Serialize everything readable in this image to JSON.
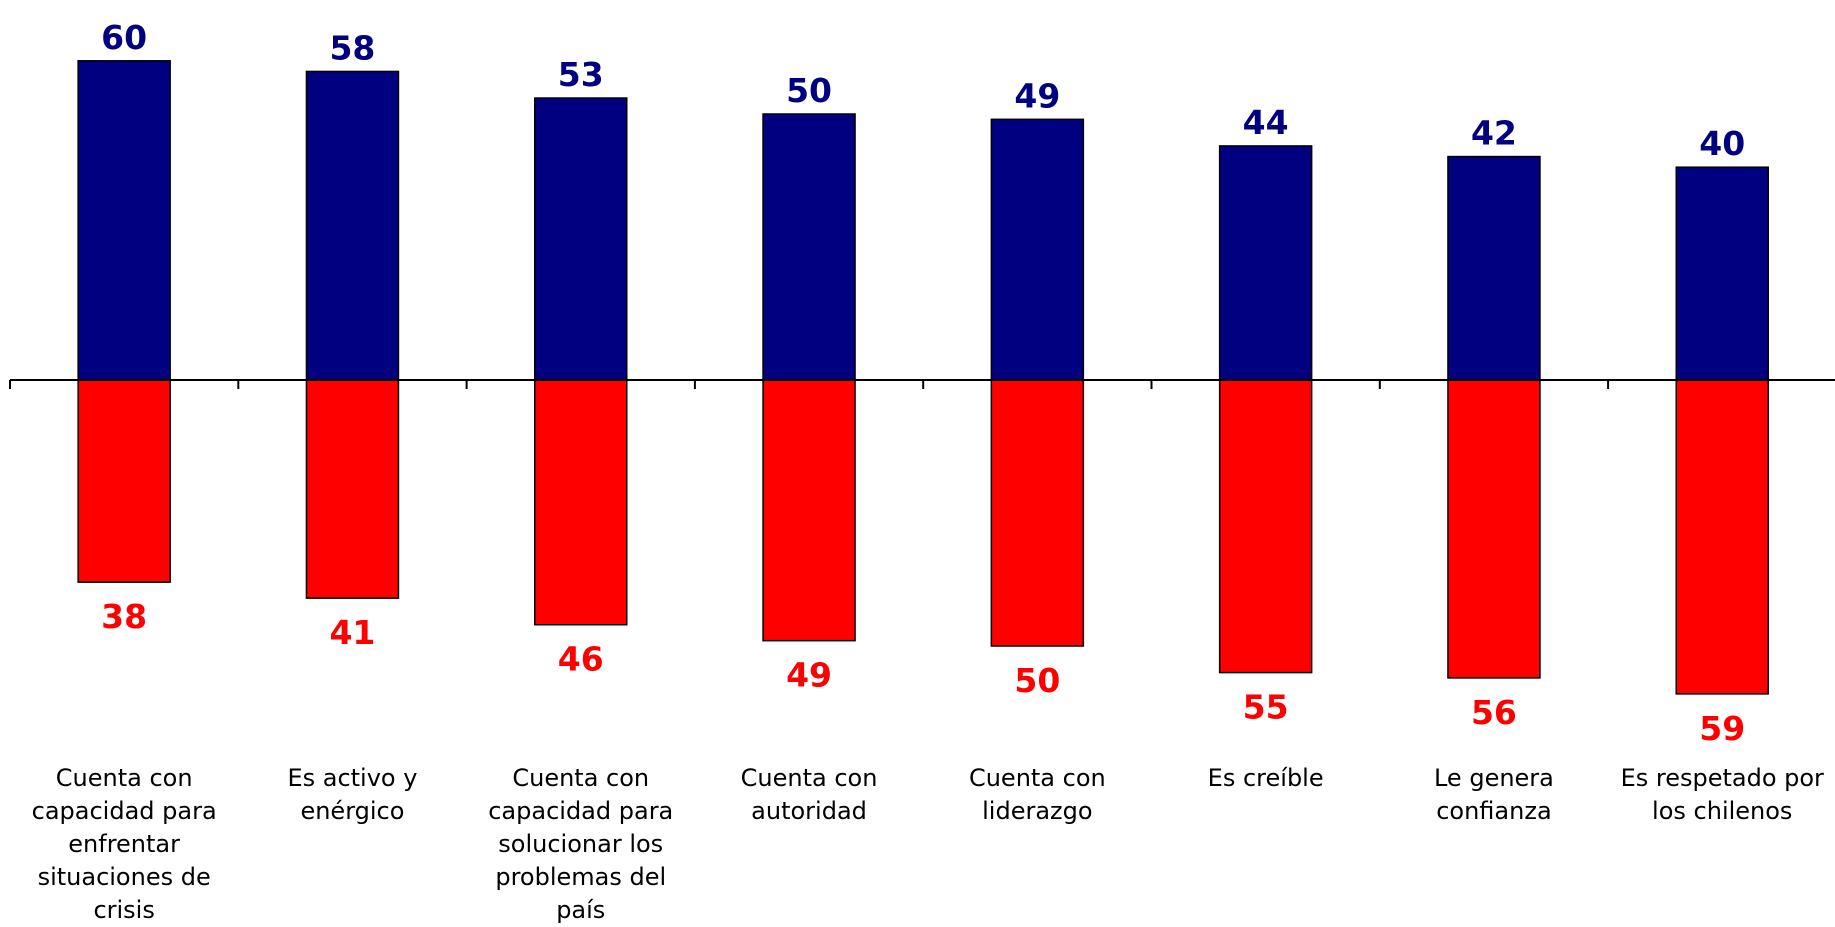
{
  "chart_data": {
    "type": "bar",
    "categories": [
      "Cuenta con\ncapacidad para\nenfrentar\nsituaciones de\ncrisis",
      "Es activo y\nenérgico",
      "Cuenta con\ncapacidad para\nsolucionar los\nproblemas del\npaís",
      "Cuenta con\nautoridad",
      "Cuenta con\nliderazgo",
      "Es creíble",
      "Le genera\nconfianza",
      "Es respetado por\nlos chilenos"
    ],
    "series": [
      {
        "values": [
          60,
          58,
          53,
          50,
          49,
          44,
          42,
          40
        ],
        "color": "#000080",
        "direction": "up"
      },
      {
        "values": [
          38,
          41,
          46,
          49,
          50,
          55,
          56,
          59
        ],
        "color": "#ff0000",
        "direction": "down"
      }
    ],
    "title": "",
    "xlabel": "",
    "ylabel": "",
    "grid": false,
    "legend": "none"
  }
}
